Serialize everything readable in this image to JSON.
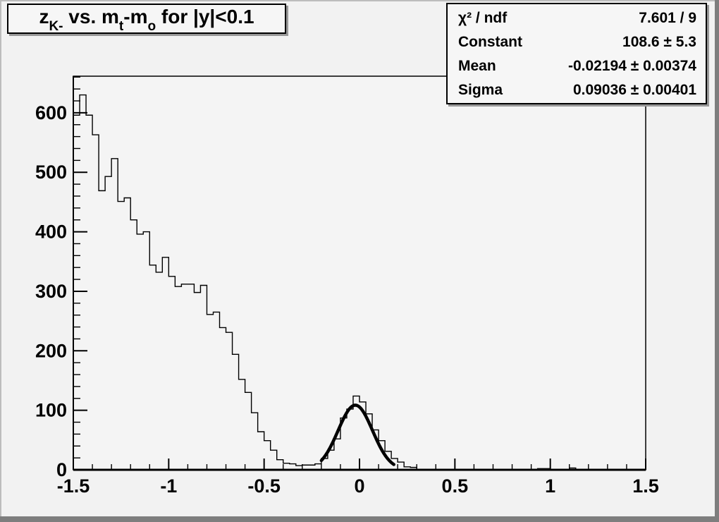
{
  "title": {
    "segments": [
      {
        "text": "z",
        "sub": "K-"
      },
      {
        "text": " vs. m",
        "sub": "t"
      },
      {
        "text": "-m",
        "sub": "o"
      },
      {
        "text": " for |y|<0.1",
        "sub": ""
      }
    ]
  },
  "stats": {
    "rows": [
      {
        "label": "χ² / ndf",
        "value": "7.601 / 9"
      },
      {
        "label": "Constant",
        "value": "108.6 ± 5.3"
      },
      {
        "label": "Mean",
        "value": "-0.02194 ± 0.00374"
      },
      {
        "label": "Sigma",
        "value": "0.09036 ± 0.00401"
      }
    ]
  },
  "colors": {
    "canvas_bg": "#f2f2f2",
    "frame_bg": "#f4f4f4",
    "box_bg": "#f6f6f6",
    "axis": "#000000",
    "histogram": "#000000",
    "fit_curve": "#000000",
    "bevel_dark": "#7e7e7e",
    "bevel_light": "#bdbdbd",
    "shadow": "#989898"
  },
  "chart_data": {
    "type": "histogram-step",
    "title": "z_{K-} vs. m_{t}-m_{o} for |y|<0.1",
    "xlabel": "",
    "ylabel": "",
    "xlim": [
      -1.5,
      1.5
    ],
    "ylim": [
      0,
      661.5
    ],
    "grid": false,
    "n_bins": 90,
    "bin_width": 0.03333,
    "bin_values": [
      596,
      630,
      596,
      563,
      469,
      493,
      523,
      451,
      457,
      420,
      396,
      400,
      344,
      332,
      357,
      325,
      308,
      312,
      312,
      298,
      310,
      261,
      265,
      239,
      231,
      194,
      152,
      130,
      96,
      64,
      49,
      33,
      17,
      11,
      10,
      7,
      8,
      8,
      10,
      19,
      33,
      52,
      87,
      102,
      124,
      114,
      94,
      67,
      49,
      31,
      19,
      13,
      5,
      4,
      0,
      0,
      0,
      0,
      0,
      0,
      0,
      0,
      0,
      0,
      0,
      0,
      0,
      0,
      0,
      0,
      0,
      0,
      0,
      2,
      2,
      0,
      0,
      0,
      3,
      1,
      1,
      0,
      0,
      0,
      0,
      0,
      0,
      0,
      0,
      0
    ],
    "x_ticks": [
      -1.5,
      -1,
      -0.5,
      0,
      0.5,
      1,
      1.5
    ],
    "x_tick_labels": [
      "-1.5",
      "-1",
      "-0.5",
      "0",
      "0.5",
      "1",
      "1.5"
    ],
    "x_minor_step": 0.1,
    "y_ticks": [
      0,
      100,
      200,
      300,
      400,
      500,
      600
    ],
    "y_tick_labels": [
      "0",
      "100",
      "200",
      "300",
      "400",
      "500",
      "600"
    ],
    "y_minor_step": 20,
    "fit": {
      "type": "gaussian",
      "constant": 108.6,
      "mean": -0.02194,
      "sigma": 0.09036,
      "draw_range": [
        -0.2,
        0.18
      ]
    },
    "legend_position": "none"
  }
}
